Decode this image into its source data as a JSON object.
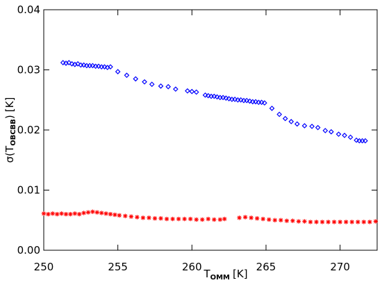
{
  "chart_data": {
    "type": "scatter",
    "xlabel": {
      "main": "T",
      "sub": "OMM",
      "unit": "[K]"
    },
    "ylabel": {
      "main": "σ(T",
      "sub": "OBCBB",
      "close": ")",
      "unit": "[K]"
    },
    "xlim": [
      250,
      272.5
    ],
    "ylim": [
      0,
      0.04
    ],
    "xticks": [
      250,
      255,
      260,
      265,
      270
    ],
    "yticks": [
      0.0,
      0.01,
      0.02,
      0.03,
      0.04
    ],
    "xtick_labels": [
      "250",
      "255",
      "260",
      "265",
      "270"
    ],
    "ytick_labels": [
      "0.00",
      "0.01",
      "0.02",
      "0.03",
      "0.04"
    ],
    "grid": false,
    "series": [
      {
        "marker": "diamond",
        "color": "#0000ff",
        "points": [
          [
            251.3,
            0.0312
          ],
          [
            251.5,
            0.0311
          ],
          [
            251.7,
            0.0312
          ],
          [
            251.9,
            0.031
          ],
          [
            252.1,
            0.0309
          ],
          [
            252.3,
            0.031
          ],
          [
            252.5,
            0.0308
          ],
          [
            252.7,
            0.0308
          ],
          [
            252.9,
            0.0307
          ],
          [
            253.1,
            0.0307
          ],
          [
            253.3,
            0.0307
          ],
          [
            253.5,
            0.0306
          ],
          [
            253.7,
            0.0306
          ],
          [
            253.9,
            0.0305
          ],
          [
            254.1,
            0.0305
          ],
          [
            254.3,
            0.0304
          ],
          [
            254.5,
            0.0305
          ],
          [
            255.0,
            0.0297
          ],
          [
            255.6,
            0.0291
          ],
          [
            256.2,
            0.0285
          ],
          [
            256.8,
            0.028
          ],
          [
            257.3,
            0.0276
          ],
          [
            257.9,
            0.0273
          ],
          [
            258.4,
            0.0272
          ],
          [
            258.9,
            0.0268
          ],
          [
            259.7,
            0.0265
          ],
          [
            260.0,
            0.0264
          ],
          [
            260.3,
            0.0263
          ],
          [
            260.9,
            0.0258
          ],
          [
            261.1,
            0.0257
          ],
          [
            261.3,
            0.0256
          ],
          [
            261.5,
            0.0256
          ],
          [
            261.7,
            0.0255
          ],
          [
            261.9,
            0.0254
          ],
          [
            262.1,
            0.0254
          ],
          [
            262.3,
            0.0253
          ],
          [
            262.5,
            0.0252
          ],
          [
            262.7,
            0.0251
          ],
          [
            262.9,
            0.0251
          ],
          [
            263.1,
            0.025
          ],
          [
            263.3,
            0.025
          ],
          [
            263.5,
            0.0249
          ],
          [
            263.7,
            0.0249
          ],
          [
            263.9,
            0.0248
          ],
          [
            264.1,
            0.0247
          ],
          [
            264.3,
            0.0247
          ],
          [
            264.5,
            0.0246
          ],
          [
            264.7,
            0.0246
          ],
          [
            264.9,
            0.0245
          ],
          [
            265.4,
            0.0236
          ],
          [
            265.9,
            0.0226
          ],
          [
            266.3,
            0.0219
          ],
          [
            266.7,
            0.0214
          ],
          [
            267.1,
            0.021
          ],
          [
            267.6,
            0.0207
          ],
          [
            268.1,
            0.0206
          ],
          [
            268.5,
            0.0204
          ],
          [
            269.0,
            0.0199
          ],
          [
            269.4,
            0.0197
          ],
          [
            269.9,
            0.0193
          ],
          [
            270.3,
            0.0191
          ],
          [
            270.7,
            0.0188
          ],
          [
            271.1,
            0.0183
          ],
          [
            271.3,
            0.0182
          ],
          [
            271.5,
            0.0182
          ],
          [
            271.7,
            0.0182
          ]
        ]
      },
      {
        "marker": "asterisk",
        "color": "#ff0000",
        "points": [
          [
            250.0,
            0.0061
          ],
          [
            250.3,
            0.006
          ],
          [
            250.6,
            0.0061
          ],
          [
            250.9,
            0.006
          ],
          [
            251.2,
            0.0061
          ],
          [
            251.5,
            0.006
          ],
          [
            251.8,
            0.006
          ],
          [
            252.1,
            0.0061
          ],
          [
            252.4,
            0.006
          ],
          [
            252.7,
            0.0062
          ],
          [
            253.0,
            0.0063
          ],
          [
            253.3,
            0.0064
          ],
          [
            253.6,
            0.0063
          ],
          [
            253.9,
            0.0062
          ],
          [
            254.2,
            0.0061
          ],
          [
            254.5,
            0.006
          ],
          [
            254.8,
            0.0059
          ],
          [
            255.1,
            0.0058
          ],
          [
            255.5,
            0.0057
          ],
          [
            255.9,
            0.0056
          ],
          [
            256.3,
            0.0055
          ],
          [
            256.7,
            0.0054
          ],
          [
            257.1,
            0.0054
          ],
          [
            257.5,
            0.0053
          ],
          [
            257.9,
            0.0053
          ],
          [
            258.3,
            0.0052
          ],
          [
            258.7,
            0.0052
          ],
          [
            259.1,
            0.0052
          ],
          [
            259.5,
            0.0052
          ],
          [
            259.9,
            0.0052
          ],
          [
            260.3,
            0.0051
          ],
          [
            260.7,
            0.0051
          ],
          [
            261.1,
            0.0052
          ],
          [
            261.5,
            0.0051
          ],
          [
            261.9,
            0.0051
          ],
          [
            262.2,
            0.0052
          ],
          [
            263.2,
            0.0054
          ],
          [
            263.6,
            0.0055
          ],
          [
            264.0,
            0.0054
          ],
          [
            264.4,
            0.0053
          ],
          [
            264.8,
            0.0052
          ],
          [
            265.2,
            0.0051
          ],
          [
            265.6,
            0.005
          ],
          [
            266.0,
            0.005
          ],
          [
            266.4,
            0.0049
          ],
          [
            266.8,
            0.0049
          ],
          [
            267.2,
            0.0048
          ],
          [
            267.6,
            0.0048
          ],
          [
            268.0,
            0.0047
          ],
          [
            268.4,
            0.0047
          ],
          [
            268.8,
            0.0047
          ],
          [
            269.2,
            0.0047
          ],
          [
            269.6,
            0.0047
          ],
          [
            270.0,
            0.0047
          ],
          [
            270.4,
            0.0047
          ],
          [
            270.8,
            0.0047
          ],
          [
            271.2,
            0.0047
          ],
          [
            271.6,
            0.0047
          ],
          [
            272.0,
            0.0047
          ],
          [
            272.4,
            0.0048
          ]
        ]
      }
    ]
  }
}
